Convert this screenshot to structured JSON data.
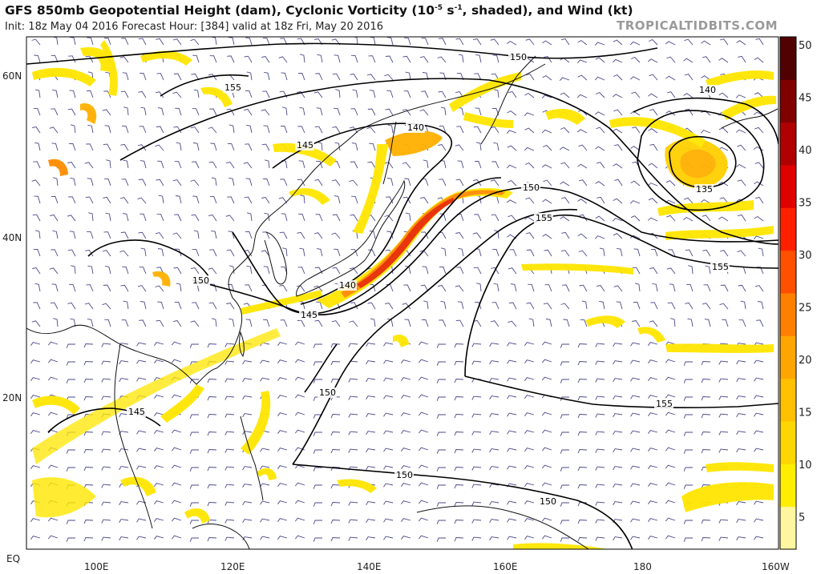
{
  "header": {
    "title_main": "GFS 850mb Geopotential Height (dam), Cyclonic Vorticity (10",
    "title_exp": "-5",
    "title_mid": " s",
    "title_exp2": "-1",
    "title_end": ", shaded), and Wind (kt)",
    "subtitle": "Init: 18z May 04 2016   Forecast Hour: [384]   valid at 18z Fri, May 20 2016",
    "brand": "TROPICALTIDBITS.COM"
  },
  "axes": {
    "lat_labels": [
      "60N",
      "40N",
      "20N",
      "EQ"
    ],
    "lon_labels": [
      "100E",
      "120E",
      "140E",
      "160E",
      "180",
      "160W"
    ]
  },
  "colorbar": {
    "ticks": [
      "50",
      "45",
      "40",
      "35",
      "30",
      "25",
      "20",
      "15",
      "10",
      "5"
    ],
    "colors": [
      "#fff7a0",
      "#ffee00",
      "#ffd700",
      "#ffc000",
      "#ffa500",
      "#ff8000",
      "#ff5000",
      "#ff2000",
      "#e00000",
      "#b00000",
      "#800000",
      "#500000"
    ]
  },
  "contours": [
    {
      "value": "155",
      "label": "155"
    },
    {
      "value": "150",
      "label": "150"
    },
    {
      "value": "145",
      "label": "145"
    },
    {
      "value": "140",
      "label": "140"
    },
    {
      "value": "135",
      "label": "135"
    }
  ],
  "contour_labels": [
    "150",
    "155",
    "145",
    "140",
    "150",
    "145",
    "140",
    "150",
    "155",
    "155",
    "140",
    "135",
    "150",
    "150",
    "150",
    "155",
    "145"
  ]
}
